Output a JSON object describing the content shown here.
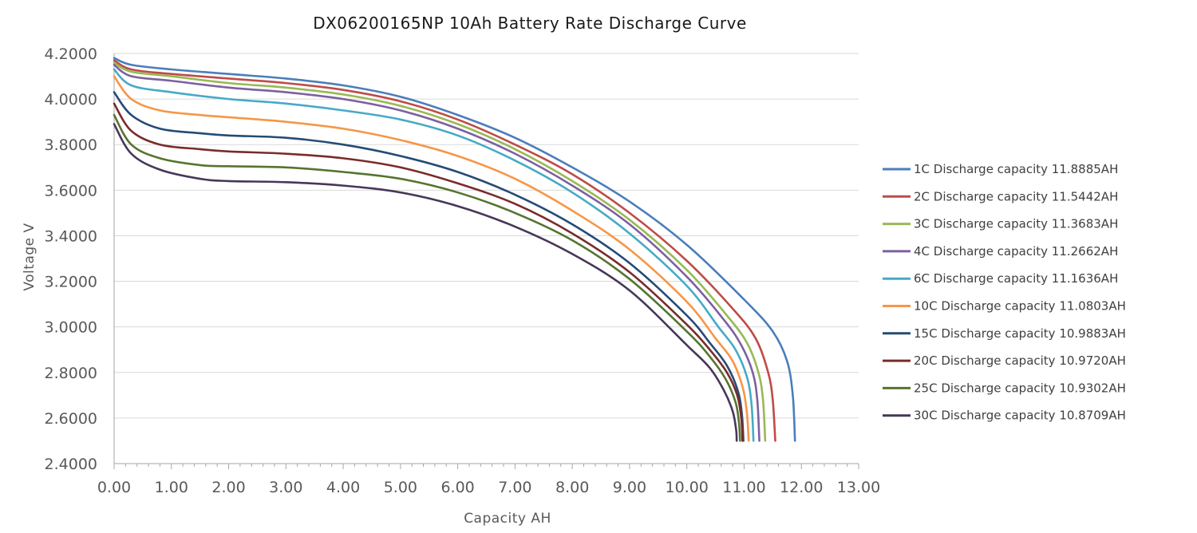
{
  "chart_data": {
    "type": "line",
    "title": "DX06200165NP 10Ah Battery Rate Discharge Curve",
    "xlabel": "Capacity AH",
    "ylabel": "Voltage V",
    "xlim": [
      0,
      13
    ],
    "ylim": [
      2.4,
      4.2
    ],
    "x_ticks": [
      "0.00",
      "1.00",
      "2.00",
      "3.00",
      "4.00",
      "5.00",
      "6.00",
      "7.00",
      "8.00",
      "9.00",
      "10.00",
      "11.00",
      "12.00",
      "13.00"
    ],
    "y_ticks": [
      "4.2000",
      "4.0000",
      "3.8000",
      "3.6000",
      "3.4000",
      "3.2000",
      "3.0000",
      "2.8000",
      "2.6000",
      "2.4000"
    ],
    "grid": "horizontal",
    "legend_position": "right",
    "series": [
      {
        "name": "1C Discharge capacity 11.8885AH",
        "color": "#4a7ebb",
        "points": [
          [
            0,
            4.18
          ],
          [
            0.3,
            4.15
          ],
          [
            1,
            4.13
          ],
          [
            2,
            4.11
          ],
          [
            3,
            4.09
          ],
          [
            4,
            4.06
          ],
          [
            5,
            4.01
          ],
          [
            6,
            3.93
          ],
          [
            7,
            3.83
          ],
          [
            8,
            3.7
          ],
          [
            9,
            3.55
          ],
          [
            10,
            3.36
          ],
          [
            11,
            3.12
          ],
          [
            11.5,
            2.98
          ],
          [
            11.75,
            2.85
          ],
          [
            11.85,
            2.7
          ],
          [
            11.8885,
            2.5
          ]
        ]
      },
      {
        "name": "2C Discharge capacity 11.5442AH",
        "color": "#be4b48",
        "points": [
          [
            0,
            4.17
          ],
          [
            0.3,
            4.13
          ],
          [
            1,
            4.11
          ],
          [
            2,
            4.09
          ],
          [
            3,
            4.07
          ],
          [
            4,
            4.04
          ],
          [
            5,
            3.99
          ],
          [
            6,
            3.91
          ],
          [
            7,
            3.8
          ],
          [
            8,
            3.67
          ],
          [
            9,
            3.5
          ],
          [
            10,
            3.29
          ],
          [
            10.8,
            3.08
          ],
          [
            11.2,
            2.95
          ],
          [
            11.42,
            2.8
          ],
          [
            11.5,
            2.68
          ],
          [
            11.5442,
            2.5
          ]
        ]
      },
      {
        "name": "3C Discharge capacity 11.3683AH",
        "color": "#98b954",
        "points": [
          [
            0,
            4.16
          ],
          [
            0.3,
            4.12
          ],
          [
            1,
            4.1
          ],
          [
            2,
            4.07
          ],
          [
            3,
            4.05
          ],
          [
            4,
            4.02
          ],
          [
            5,
            3.97
          ],
          [
            6,
            3.89
          ],
          [
            7,
            3.78
          ],
          [
            8,
            3.64
          ],
          [
            9,
            3.47
          ],
          [
            10,
            3.25
          ],
          [
            10.7,
            3.05
          ],
          [
            11.05,
            2.93
          ],
          [
            11.25,
            2.8
          ],
          [
            11.33,
            2.68
          ],
          [
            11.3683,
            2.5
          ]
        ]
      },
      {
        "name": "4C Discharge capacity 11.2662AH",
        "color": "#7d60a0",
        "points": [
          [
            0,
            4.15
          ],
          [
            0.3,
            4.1
          ],
          [
            1,
            4.08
          ],
          [
            2,
            4.05
          ],
          [
            3,
            4.03
          ],
          [
            4,
            4.0
          ],
          [
            5,
            3.95
          ],
          [
            6,
            3.87
          ],
          [
            7,
            3.76
          ],
          [
            8,
            3.62
          ],
          [
            9,
            3.45
          ],
          [
            10,
            3.22
          ],
          [
            10.65,
            3.03
          ],
          [
            10.95,
            2.92
          ],
          [
            11.15,
            2.8
          ],
          [
            11.23,
            2.68
          ],
          [
            11.2662,
            2.5
          ]
        ]
      },
      {
        "name": "6C Discharge capacity 11.1636AH",
        "color": "#46aac5",
        "points": [
          [
            0,
            4.13
          ],
          [
            0.3,
            4.06
          ],
          [
            1,
            4.03
          ],
          [
            2,
            4.0
          ],
          [
            3,
            3.98
          ],
          [
            4,
            3.95
          ],
          [
            5,
            3.91
          ],
          [
            6,
            3.84
          ],
          [
            7,
            3.73
          ],
          [
            8,
            3.59
          ],
          [
            9,
            3.41
          ],
          [
            10,
            3.18
          ],
          [
            10.55,
            3.0
          ],
          [
            10.85,
            2.9
          ],
          [
            11.05,
            2.78
          ],
          [
            11.13,
            2.66
          ],
          [
            11.1636,
            2.5
          ]
        ]
      },
      {
        "name": "10C Discharge capacity 11.0803AH",
        "color": "#f79646",
        "points": [
          [
            0,
            4.1
          ],
          [
            0.3,
            4.0
          ],
          [
            0.8,
            3.95
          ],
          [
            1.5,
            3.93
          ],
          [
            2,
            3.92
          ],
          [
            3,
            3.9
          ],
          [
            4,
            3.87
          ],
          [
            5,
            3.82
          ],
          [
            6,
            3.75
          ],
          [
            7,
            3.65
          ],
          [
            8,
            3.51
          ],
          [
            9,
            3.34
          ],
          [
            10,
            3.11
          ],
          [
            10.5,
            2.95
          ],
          [
            10.8,
            2.85
          ],
          [
            10.98,
            2.73
          ],
          [
            11.05,
            2.62
          ],
          [
            11.0803,
            2.5
          ]
        ]
      },
      {
        "name": "15C Discharge capacity 10.9883AH",
        "color": "#254b75",
        "points": [
          [
            0,
            4.03
          ],
          [
            0.3,
            3.93
          ],
          [
            0.8,
            3.87
          ],
          [
            1.5,
            3.85
          ],
          [
            2,
            3.84
          ],
          [
            3,
            3.83
          ],
          [
            4,
            3.8
          ],
          [
            5,
            3.75
          ],
          [
            6,
            3.68
          ],
          [
            7,
            3.58
          ],
          [
            8,
            3.45
          ],
          [
            9,
            3.28
          ],
          [
            10,
            3.05
          ],
          [
            10.4,
            2.93
          ],
          [
            10.7,
            2.83
          ],
          [
            10.89,
            2.72
          ],
          [
            10.96,
            2.62
          ],
          [
            10.9883,
            2.5
          ]
        ]
      },
      {
        "name": "20C Discharge capacity 10.9720AH",
        "color": "#7a2b2b",
        "points": [
          [
            0,
            3.98
          ],
          [
            0.3,
            3.86
          ],
          [
            0.8,
            3.8
          ],
          [
            1.5,
            3.78
          ],
          [
            2,
            3.77
          ],
          [
            3,
            3.76
          ],
          [
            4,
            3.74
          ],
          [
            5,
            3.7
          ],
          [
            6,
            3.63
          ],
          [
            7,
            3.54
          ],
          [
            8,
            3.41
          ],
          [
            9,
            3.24
          ],
          [
            10,
            3.01
          ],
          [
            10.4,
            2.9
          ],
          [
            10.7,
            2.8
          ],
          [
            10.88,
            2.7
          ],
          [
            10.95,
            2.6
          ],
          [
            10.972,
            2.5
          ]
        ]
      },
      {
        "name": "25C Discharge capacity 10.9302AH",
        "color": "#56742f",
        "points": [
          [
            0,
            3.93
          ],
          [
            0.3,
            3.8
          ],
          [
            0.8,
            3.74
          ],
          [
            1.5,
            3.71
          ],
          [
            2,
            3.705
          ],
          [
            3,
            3.7
          ],
          [
            4,
            3.68
          ],
          [
            5,
            3.65
          ],
          [
            6,
            3.59
          ],
          [
            7,
            3.5
          ],
          [
            8,
            3.38
          ],
          [
            9,
            3.21
          ],
          [
            10,
            2.98
          ],
          [
            10.4,
            2.87
          ],
          [
            10.68,
            2.77
          ],
          [
            10.85,
            2.67
          ],
          [
            10.91,
            2.58
          ],
          [
            10.9302,
            2.5
          ]
        ]
      },
      {
        "name": "30C Discharge capacity 10.8709AH",
        "color": "#473759",
        "points": [
          [
            0,
            3.89
          ],
          [
            0.3,
            3.76
          ],
          [
            0.8,
            3.69
          ],
          [
            1.5,
            3.65
          ],
          [
            2,
            3.64
          ],
          [
            3,
            3.635
          ],
          [
            4,
            3.62
          ],
          [
            5,
            3.59
          ],
          [
            6,
            3.53
          ],
          [
            7,
            3.44
          ],
          [
            8,
            3.32
          ],
          [
            9,
            3.16
          ],
          [
            10,
            2.92
          ],
          [
            10.4,
            2.82
          ],
          [
            10.65,
            2.72
          ],
          [
            10.8,
            2.63
          ],
          [
            10.86,
            2.55
          ],
          [
            10.8709,
            2.5
          ]
        ]
      }
    ]
  }
}
